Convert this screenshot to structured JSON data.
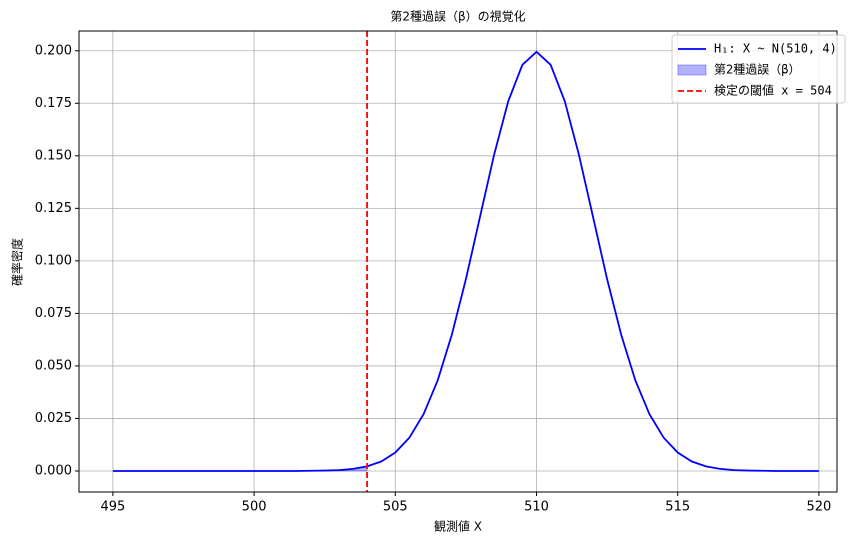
{
  "chart_data": {
    "type": "line",
    "title": "第2種過誤（β）の視覚化",
    "xlabel": "観測値 X",
    "ylabel": "確率密度",
    "x": [
      495,
      495.5,
      496,
      496.5,
      497,
      497.5,
      498,
      498.5,
      499,
      499.5,
      500,
      500.5,
      501,
      501.5,
      502,
      502.5,
      503,
      503.5,
      504,
      504.5,
      505,
      505.5,
      506,
      506.5,
      507,
      507.5,
      508,
      508.5,
      509,
      509.5,
      510,
      510.5,
      511,
      511.5,
      512,
      512.5,
      513,
      513.5,
      514,
      514.5,
      515,
      515.5,
      516,
      516.5,
      517,
      517.5,
      518,
      518.5,
      519,
      519.5,
      520
    ],
    "series": [
      {
        "name": "H₁: X ~ N(510, 4)",
        "color": "#0000ff",
        "values": [
          0,
          0,
          0,
          0,
          0,
          0,
          0,
          0,
          0,
          0,
          0,
          0,
          0,
          0,
          0.0001,
          0.0002,
          0.0004,
          0.001,
          0.0022,
          0.0045,
          0.0088,
          0.0159,
          0.027,
          0.0431,
          0.0648,
          0.0913,
          0.121,
          0.1506,
          0.176,
          0.1933,
          0.1995,
          0.1933,
          0.176,
          0.1506,
          0.121,
          0.0913,
          0.0648,
          0.0431,
          0.027,
          0.0159,
          0.0088,
          0.0045,
          0.0022,
          0.001,
          0.0004,
          0.0002,
          0.0001,
          0,
          0,
          0,
          0
        ]
      }
    ],
    "fill": {
      "name": "第2種過誤（β）",
      "color": "#0000ff"
    },
    "threshold": {
      "value": 504,
      "label": "検定の閾値 x = 504",
      "color": "#ff0000"
    },
    "xlim": [
      493.8,
      520.64
    ],
    "ylim": [
      -0.01,
      0.2094
    ],
    "xticks": [
      495,
      500,
      505,
      510,
      515,
      520
    ],
    "yticks": [
      {
        "value": 0,
        "label": "0.000"
      },
      {
        "value": 0.025,
        "label": "0.025"
      },
      {
        "value": 0.05,
        "label": "0.050"
      },
      {
        "value": 0.075,
        "label": "0.075"
      },
      {
        "value": 0.1,
        "label": "0.100"
      },
      {
        "value": 0.125,
        "label": "0.125"
      },
      {
        "value": 0.15,
        "label": "0.150"
      },
      {
        "value": 0.175,
        "label": "0.175"
      },
      {
        "value": 0.2,
        "label": "0.200"
      }
    ],
    "grid": true,
    "legend": "upper right"
  }
}
